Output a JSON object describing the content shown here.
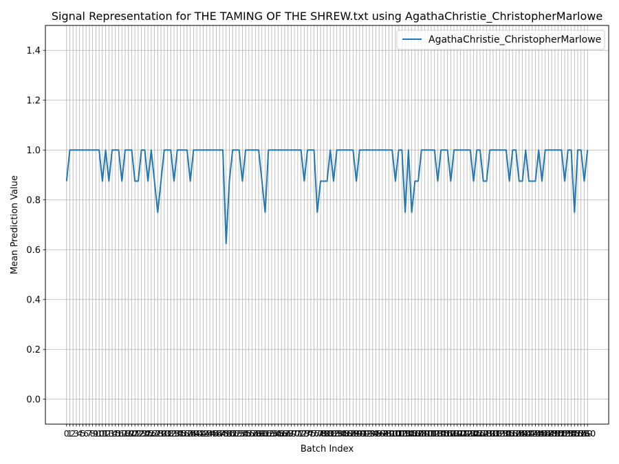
{
  "chart_data": {
    "type": "line",
    "title": "Signal Representation for THE TAMING OF THE SHREW.txt using AgathaChristie_ChristopherMarlowe",
    "xlabel": "Batch Index",
    "ylabel": "Mean Prediction Value",
    "xlim": [
      -6.5,
      166.5
    ],
    "ylim": [
      -0.1,
      1.5
    ],
    "yticks": [
      0.0,
      0.2,
      0.4,
      0.6,
      0.8,
      1.0,
      1.2,
      1.4
    ],
    "ytick_labels": [
      "0.0",
      "0.2",
      "0.4",
      "0.6",
      "0.8",
      "1.0",
      "1.2",
      "1.4"
    ],
    "grid": true,
    "legend": {
      "placement": "upper right",
      "entries": [
        "AgathaChristie_ChristopherMarlowe"
      ]
    },
    "series": [
      {
        "name": "AgathaChristie_ChristopherMarlowe",
        "color": "#1f77b4",
        "x": [
          0,
          1,
          2,
          3,
          4,
          5,
          6,
          7,
          8,
          9,
          10,
          11,
          12,
          13,
          14,
          15,
          16,
          17,
          18,
          19,
          20,
          21,
          22,
          23,
          24,
          25,
          26,
          27,
          28,
          29,
          30,
          31,
          32,
          33,
          34,
          35,
          36,
          37,
          38,
          39,
          40,
          41,
          42,
          43,
          44,
          45,
          46,
          47,
          48,
          49,
          50,
          51,
          52,
          53,
          54,
          55,
          56,
          57,
          58,
          59,
          60,
          61,
          62,
          63,
          64,
          65,
          66,
          67,
          68,
          69,
          70,
          71,
          72,
          73,
          74,
          75,
          76,
          77,
          78,
          79,
          80,
          81,
          82,
          83,
          84,
          85,
          86,
          87,
          88,
          89,
          90,
          91,
          92,
          93,
          94,
          95,
          96,
          97,
          98,
          99,
          100,
          101,
          102,
          103,
          104,
          105,
          106,
          107,
          108,
          109,
          110,
          111,
          112,
          113,
          114,
          115,
          116,
          117,
          118,
          119,
          120,
          121,
          122,
          123,
          124,
          125,
          126,
          127,
          128,
          129,
          130,
          131,
          132,
          133,
          134,
          135,
          136,
          137,
          138,
          139,
          140,
          141,
          142,
          143,
          144,
          145,
          146,
          147,
          148,
          149,
          150,
          151,
          152,
          153,
          154,
          155,
          156,
          157,
          158,
          159,
          160
        ],
        "values": [
          0.875,
          1,
          1,
          1,
          1,
          1,
          1,
          1,
          1,
          1,
          1,
          0.875,
          1,
          0.875,
          1,
          1,
          1,
          0.875,
          1,
          1,
          1,
          0.875,
          0.875,
          1,
          1,
          0.875,
          1,
          0.875,
          0.75,
          0.875,
          1,
          1,
          1,
          0.875,
          1,
          1,
          1,
          1,
          0.875,
          1,
          1,
          1,
          1,
          1,
          1,
          1,
          1,
          1,
          1,
          0.625,
          0.875,
          1,
          1,
          1,
          0.875,
          1,
          1,
          1,
          1,
          1,
          0.875,
          0.75,
          1,
          1,
          1,
          1,
          1,
          1,
          1,
          1,
          1,
          1,
          1,
          0.875,
          1,
          1,
          1,
          0.75,
          0.875,
          0.875,
          0.875,
          1,
          0.875,
          1,
          1,
          1,
          1,
          1,
          1,
          0.875,
          1,
          1,
          1,
          1,
          1,
          1,
          1,
          1,
          1,
          1,
          1,
          0.875,
          1,
          1,
          0.75,
          1,
          0.75,
          0.875,
          0.875,
          1,
          1,
          1,
          1,
          1,
          0.875,
          1,
          1,
          1,
          0.875,
          1,
          1,
          1,
          1,
          1,
          1,
          0.875,
          1,
          1,
          0.875,
          0.875,
          1,
          1,
          1,
          1,
          1,
          1,
          0.875,
          1,
          1,
          0.875,
          0.875,
          1,
          0.875,
          0.875,
          0.875,
          1,
          0.875,
          1,
          1,
          1,
          1,
          1,
          1,
          0.875,
          1,
          1,
          0.75,
          1,
          1,
          0.875,
          1
        ]
      }
    ]
  }
}
